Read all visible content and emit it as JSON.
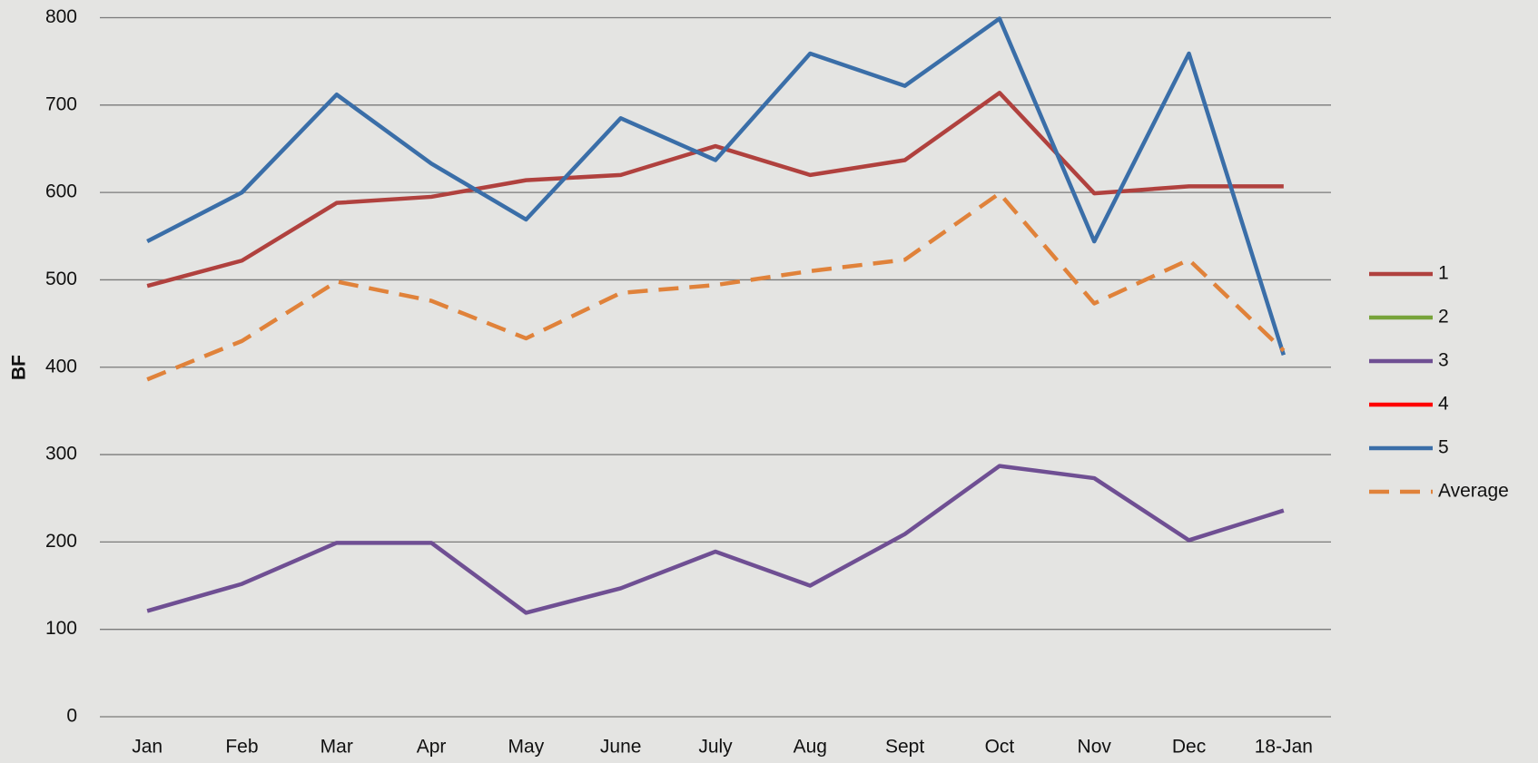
{
  "chart_data": {
    "type": "line",
    "ylabel": "BF",
    "categories": [
      "Jan",
      "Feb",
      "Mar",
      "Apr",
      "May",
      "June",
      "July",
      "Aug",
      "Sept",
      "Oct",
      "Nov",
      "Dec",
      "18-Jan"
    ],
    "ylim": [
      0,
      800
    ],
    "yticks": [
      0,
      100,
      200,
      300,
      400,
      500,
      600,
      700,
      800
    ],
    "grid": true,
    "legend": "right",
    "series": [
      {
        "name": "1",
        "color": "#b0413e",
        "values": [
          493,
          522,
          588,
          595,
          614,
          620,
          653,
          620,
          637,
          714,
          599,
          607,
          607
        ]
      },
      {
        "name": "2",
        "color": "#77a33a",
        "values": [
          null,
          null,
          null,
          null,
          null,
          null,
          null,
          null,
          null,
          null,
          null,
          null,
          null
        ]
      },
      {
        "name": "3",
        "color": "#6f4f93",
        "values": [
          121,
          152,
          199,
          199,
          119,
          147,
          189,
          150,
          209,
          287,
          273,
          202,
          236
        ]
      },
      {
        "name": "4",
        "color": "#ff0000",
        "values": [
          null,
          null,
          null,
          null,
          null,
          null,
          null,
          null,
          null,
          null,
          null,
          null,
          null
        ]
      },
      {
        "name": "5",
        "color": "#3a6ea8",
        "values": [
          544,
          600,
          712,
          633,
          569,
          685,
          637,
          759,
          722,
          799,
          544,
          759,
          414
        ]
      },
      {
        "name": "Average",
        "color": "#e0823a",
        "dashed": true,
        "values": [
          386,
          430,
          498,
          476,
          433,
          485,
          494,
          510,
          523,
          599,
          473,
          523,
          419
        ]
      }
    ]
  }
}
